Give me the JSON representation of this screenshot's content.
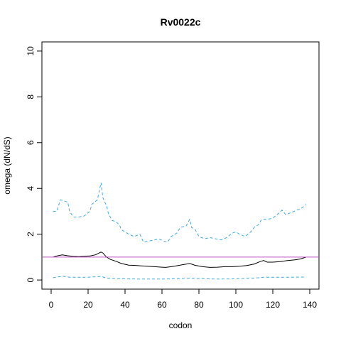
{
  "chart_data": {
    "type": "line",
    "title": "Rv0022c",
    "xlabel": "codon",
    "ylabel": "omega (dN/dS)",
    "xlim": [
      -5,
      145
    ],
    "ylim": [
      -0.4,
      10.4
    ],
    "xticks": [
      0,
      20,
      40,
      60,
      80,
      100,
      120,
      140
    ],
    "yticks": [
      0,
      2,
      4,
      6,
      8,
      10
    ],
    "grid": false,
    "legend": "none",
    "reference_line": {
      "y": 1,
      "color": "#c04fc0"
    },
    "series": [
      {
        "style": "solid",
        "color": "#000000",
        "points": [
          [
            1,
            1.0
          ],
          [
            3,
            1.05
          ],
          [
            6,
            1.1
          ],
          [
            9,
            1.06
          ],
          [
            12,
            1.03
          ],
          [
            15,
            1.02
          ],
          [
            18,
            1.04
          ],
          [
            21,
            1.05
          ],
          [
            24,
            1.1
          ],
          [
            27,
            1.22
          ],
          [
            28,
            1.18
          ],
          [
            30,
            1.0
          ],
          [
            32,
            0.9
          ],
          [
            35,
            0.82
          ],
          [
            38,
            0.72
          ],
          [
            42,
            0.65
          ],
          [
            45,
            0.64
          ],
          [
            48,
            0.62
          ],
          [
            52,
            0.6
          ],
          [
            56,
            0.58
          ],
          [
            60,
            0.56
          ],
          [
            62,
            0.55
          ],
          [
            65,
            0.58
          ],
          [
            68,
            0.62
          ],
          [
            72,
            0.68
          ],
          [
            75,
            0.72
          ],
          [
            78,
            0.64
          ],
          [
            82,
            0.58
          ],
          [
            86,
            0.55
          ],
          [
            90,
            0.56
          ],
          [
            94,
            0.58
          ],
          [
            98,
            0.58
          ],
          [
            102,
            0.6
          ],
          [
            106,
            0.63
          ],
          [
            110,
            0.7
          ],
          [
            113,
            0.8
          ],
          [
            115,
            0.85
          ],
          [
            117,
            0.78
          ],
          [
            120,
            0.78
          ],
          [
            124,
            0.8
          ],
          [
            128,
            0.85
          ],
          [
            132,
            0.88
          ],
          [
            135,
            0.92
          ],
          [
            138,
            1.0
          ]
        ]
      },
      {
        "style": "dashed",
        "color": "#3ea9e0",
        "points": [
          [
            1,
            3.0
          ],
          [
            3,
            3.0
          ],
          [
            5,
            3.5
          ],
          [
            9,
            3.4
          ],
          [
            10,
            3.0
          ],
          [
            12,
            2.75
          ],
          [
            15,
            2.75
          ],
          [
            18,
            2.8
          ],
          [
            21,
            3.0
          ],
          [
            22,
            3.3
          ],
          [
            25,
            3.5
          ],
          [
            27,
            4.25
          ],
          [
            28,
            3.6
          ],
          [
            29,
            3.4
          ],
          [
            30,
            3.25
          ],
          [
            31,
            2.9
          ],
          [
            33,
            2.6
          ],
          [
            35,
            2.55
          ],
          [
            37,
            2.4
          ],
          [
            38,
            2.2
          ],
          [
            40,
            2.1
          ],
          [
            42,
            2.0
          ],
          [
            45,
            1.9
          ],
          [
            48,
            2.0
          ],
          [
            50,
            1.65
          ],
          [
            53,
            1.7
          ],
          [
            56,
            1.75
          ],
          [
            58,
            1.8
          ],
          [
            61,
            1.7
          ],
          [
            63,
            1.65
          ],
          [
            65,
            1.9
          ],
          [
            68,
            2.05
          ],
          [
            70,
            2.3
          ],
          [
            73,
            2.35
          ],
          [
            75,
            2.65
          ],
          [
            76,
            2.3
          ],
          [
            78,
            2.2
          ],
          [
            80,
            1.9
          ],
          [
            83,
            1.8
          ],
          [
            86,
            1.85
          ],
          [
            89,
            1.8
          ],
          [
            92,
            1.75
          ],
          [
            95,
            1.85
          ],
          [
            98,
            2.05
          ],
          [
            100,
            2.1
          ],
          [
            102,
            2.0
          ],
          [
            105,
            1.9
          ],
          [
            108,
            2.1
          ],
          [
            110,
            2.3
          ],
          [
            112,
            2.4
          ],
          [
            114,
            2.65
          ],
          [
            117,
            2.65
          ],
          [
            120,
            2.7
          ],
          [
            123,
            2.9
          ],
          [
            125,
            3.05
          ],
          [
            127,
            2.85
          ],
          [
            130,
            2.95
          ],
          [
            133,
            3.05
          ],
          [
            135,
            3.1
          ],
          [
            138,
            3.3
          ]
        ]
      },
      {
        "style": "dashed",
        "color": "#3ea9e0",
        "points": [
          [
            1,
            0.1
          ],
          [
            4,
            0.14
          ],
          [
            7,
            0.16
          ],
          [
            10,
            0.12
          ],
          [
            15,
            0.12
          ],
          [
            20,
            0.12
          ],
          [
            24,
            0.14
          ],
          [
            27,
            0.16
          ],
          [
            30,
            0.08
          ],
          [
            35,
            0.06
          ],
          [
            40,
            0.05
          ],
          [
            50,
            0.04
          ],
          [
            60,
            0.04
          ],
          [
            70,
            0.06
          ],
          [
            75,
            0.08
          ],
          [
            80,
            0.06
          ],
          [
            90,
            0.04
          ],
          [
            100,
            0.05
          ],
          [
            110,
            0.08
          ],
          [
            115,
            0.12
          ],
          [
            120,
            0.12
          ],
          [
            130,
            0.12
          ],
          [
            138,
            0.13
          ]
        ]
      }
    ]
  }
}
